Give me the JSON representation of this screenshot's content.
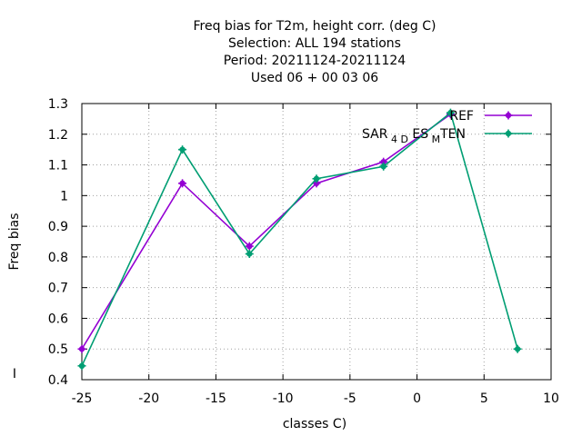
{
  "chart_data": {
    "type": "line",
    "title_lines": [
      "Freq bias  for T2m, height corr. (deg C)",
      "Selection: ALL    194 stations",
      "Period: 20211124-20211124",
      "Used  06 + 00 03 06"
    ],
    "xlabel": "classes C)",
    "ylabel": "Freq bias",
    "xlim": [
      -25,
      10
    ],
    "ylim": [
      0.4,
      1.3
    ],
    "xticks": [
      -25,
      -20,
      -15,
      -10,
      -5,
      0,
      5,
      10
    ],
    "yticks": [
      0.4,
      0.5,
      0.6,
      0.7,
      0.8,
      0.9,
      1,
      1.1,
      1.2,
      1.3
    ],
    "grid": true,
    "legend_position": "top-right",
    "series": [
      {
        "name": "REF",
        "color": "#9400d3",
        "x": [
          -25,
          -17.5,
          -12.5,
          -7.5,
          -2.5,
          2.5
        ],
        "y": [
          0.5,
          1.04,
          0.835,
          1.04,
          1.11,
          1.265
        ]
      },
      {
        "name": "SAR_4D_ES_MTEN",
        "legend_parts": [
          "SAR",
          "4 D",
          "ES",
          "M",
          "TEN"
        ],
        "color": "#009e73",
        "x": [
          -25,
          -17.5,
          -12.5,
          -7.5,
          -2.5,
          2.5,
          7.5
        ],
        "y": [
          0.445,
          1.15,
          0.81,
          1.055,
          1.095,
          1.27,
          0.5
        ]
      }
    ],
    "side_mark": "I"
  }
}
